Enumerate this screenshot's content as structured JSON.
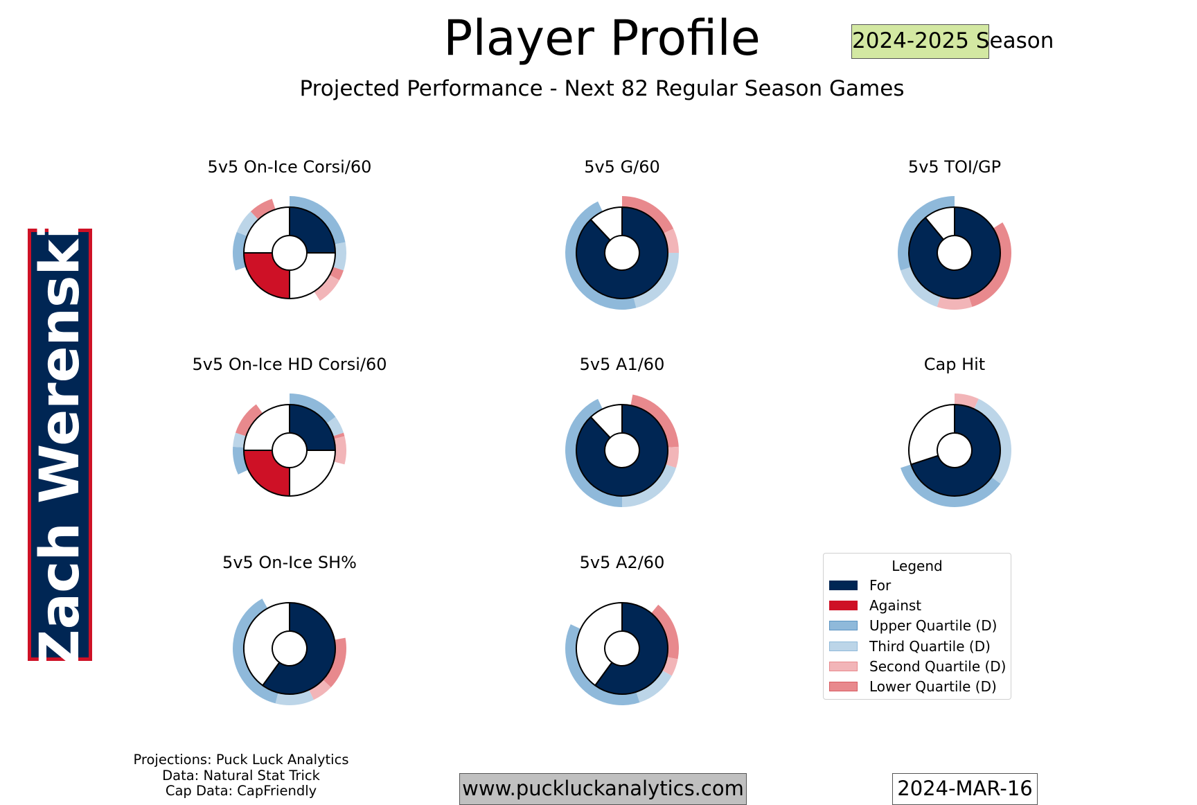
{
  "header": {
    "title": "Player Profile",
    "subtitle": "Projected Performance - Next 82 Regular Season Games",
    "season": "2024-2025 Season"
  },
  "player": {
    "name": "Zach Werenski"
  },
  "colors": {
    "for": "#002654",
    "against": "#ce1126",
    "upper_quartile": "#8fb9da",
    "third_quartile": "#bcd5e8",
    "second_quartile": "#f2b5b8",
    "lower_quartile": "#e8898d"
  },
  "chart_data": [
    {
      "type": "pie",
      "title": "5v5 On-Ice Corsi/60",
      "inner": [
        {
          "label": "For",
          "value": 25
        },
        {
          "label": "Empty",
          "value": 25
        },
        {
          "label": "Against",
          "value": 25
        },
        {
          "label": "Empty",
          "value": 25
        }
      ],
      "outer": [
        {
          "label": "Upper Quartile (D)",
          "value": 22
        },
        {
          "label": "Third Quartile (D)",
          "value": 8
        },
        {
          "label": "Lower Quartile (D)",
          "value": 3
        },
        {
          "label": "Second Quartile (D)",
          "value": 8
        },
        {
          "label": "Empty",
          "value": 29
        },
        {
          "label": "Upper Quartile (D)",
          "value": 11
        },
        {
          "label": "Third Quartile (D)",
          "value": 7
        },
        {
          "label": "Lower Quartile (D)",
          "value": 7
        },
        {
          "label": "Empty",
          "value": 5
        }
      ]
    },
    {
      "type": "pie",
      "title": "5v5 G/60",
      "inner": [
        {
          "label": "For",
          "value": 88
        },
        {
          "label": "Empty",
          "value": 12
        }
      ],
      "outer": [
        {
          "label": "Lower Quartile (D)",
          "value": 18
        },
        {
          "label": "Second Quartile (D)",
          "value": 7
        },
        {
          "label": "Third Quartile (D)",
          "value": 21
        },
        {
          "label": "Upper Quartile (D)",
          "value": 47
        },
        {
          "label": "Empty",
          "value": 7
        }
      ]
    },
    {
      "type": "pie",
      "title": "5v5 TOI/GP",
      "inner": [
        {
          "label": "For",
          "value": 89
        },
        {
          "label": "Empty",
          "value": 11
        }
      ],
      "outer": [
        {
          "label": "Empty",
          "value": 16
        },
        {
          "label": "Lower Quartile (D)",
          "value": 29
        },
        {
          "label": "Second Quartile (D)",
          "value": 10
        },
        {
          "label": "Third Quartile (D)",
          "value": 15
        },
        {
          "label": "Upper Quartile (D)",
          "value": 30
        }
      ]
    },
    {
      "type": "pie",
      "title": "5v5 On-Ice HD Corsi/60",
      "inner": [
        {
          "label": "For",
          "value": 25
        },
        {
          "label": "Empty",
          "value": 25
        },
        {
          "label": "Against",
          "value": 25
        },
        {
          "label": "Empty",
          "value": 25
        }
      ],
      "outer": [
        {
          "label": "Upper Quartile (D)",
          "value": 15
        },
        {
          "label": "Third Quartile (D)",
          "value": 5
        },
        {
          "label": "Lower Quartile (D)",
          "value": 1
        },
        {
          "label": "Second Quartile (D)",
          "value": 8
        },
        {
          "label": "Empty",
          "value": 39
        },
        {
          "label": "Upper Quartile (D)",
          "value": 8
        },
        {
          "label": "Third Quartile (D)",
          "value": 4
        },
        {
          "label": "Lower Quartile (D)",
          "value": 10
        },
        {
          "label": "Empty",
          "value": 10
        }
      ]
    },
    {
      "type": "pie",
      "title": "5v5 A1/60",
      "inner": [
        {
          "label": "For",
          "value": 88
        },
        {
          "label": "Empty",
          "value": 12
        }
      ],
      "outer": [
        {
          "label": "Empty",
          "value": 3
        },
        {
          "label": "Lower Quartile (D)",
          "value": 21
        },
        {
          "label": "Second Quartile (D)",
          "value": 6
        },
        {
          "label": "Third Quartile (D)",
          "value": 20
        },
        {
          "label": "Upper Quartile (D)",
          "value": 43
        },
        {
          "label": "Empty",
          "value": 7
        }
      ]
    },
    {
      "type": "pie",
      "title": "Cap Hit",
      "inner": [
        {
          "label": "For",
          "value": 70
        },
        {
          "label": "Empty",
          "value": 30
        }
      ],
      "outer": [
        {
          "label": "Second Quartile (D)",
          "value": 7
        },
        {
          "label": "Third Quartile (D)",
          "value": 28
        },
        {
          "label": "Upper Quartile (D)",
          "value": 35
        },
        {
          "label": "Empty",
          "value": 30
        }
      ]
    },
    {
      "type": "pie",
      "title": "5v5 On-Ice SH%",
      "inner": [
        {
          "label": "For",
          "value": 60
        },
        {
          "label": "Empty",
          "value": 40
        }
      ],
      "outer": [
        {
          "label": "Empty",
          "value": 22
        },
        {
          "label": "Lower Quartile (D)",
          "value": 15
        },
        {
          "label": "Second Quartile (D)",
          "value": 6
        },
        {
          "label": "Third Quartile (D)",
          "value": 11
        },
        {
          "label": "Upper Quartile (D)",
          "value": 38
        },
        {
          "label": "Empty",
          "value": 8
        }
      ]
    },
    {
      "type": "pie",
      "title": "5v5 A2/60",
      "inner": [
        {
          "label": "For",
          "value": 60
        },
        {
          "label": "Empty",
          "value": 40
        }
      ],
      "outer": [
        {
          "label": "Empty",
          "value": 11
        },
        {
          "label": "Lower Quartile (D)",
          "value": 17
        },
        {
          "label": "Second Quartile (D)",
          "value": 5
        },
        {
          "label": "Third Quartile (D)",
          "value": 12
        },
        {
          "label": "Upper Quartile (D)",
          "value": 37
        },
        {
          "label": "Empty",
          "value": 18
        }
      ]
    }
  ],
  "legend": {
    "title": "Legend",
    "items": [
      {
        "label": "For",
        "color": "#002654",
        "border": "#002654"
      },
      {
        "label": "Against",
        "color": "#ce1126",
        "border": "#ce1126"
      },
      {
        "label": "Upper Quartile (D)",
        "color": "#8fb9da",
        "border": "#5b93c2"
      },
      {
        "label": "Third Quartile (D)",
        "color": "#bcd5e8",
        "border": "#8fb9da"
      },
      {
        "label": "Second Quartile (D)",
        "color": "#f2b5b8",
        "border": "#e8898d"
      },
      {
        "label": "Lower Quartile (D)",
        "color": "#e8898d",
        "border": "#d85b61"
      }
    ]
  },
  "footer": {
    "credits": [
      "Projections: Puck Luck Analytics",
      "Data: Natural Stat Trick",
      "Cap Data: CapFriendly"
    ],
    "website": "www.puckluckanalytics.com",
    "date": "2024-MAR-16"
  }
}
